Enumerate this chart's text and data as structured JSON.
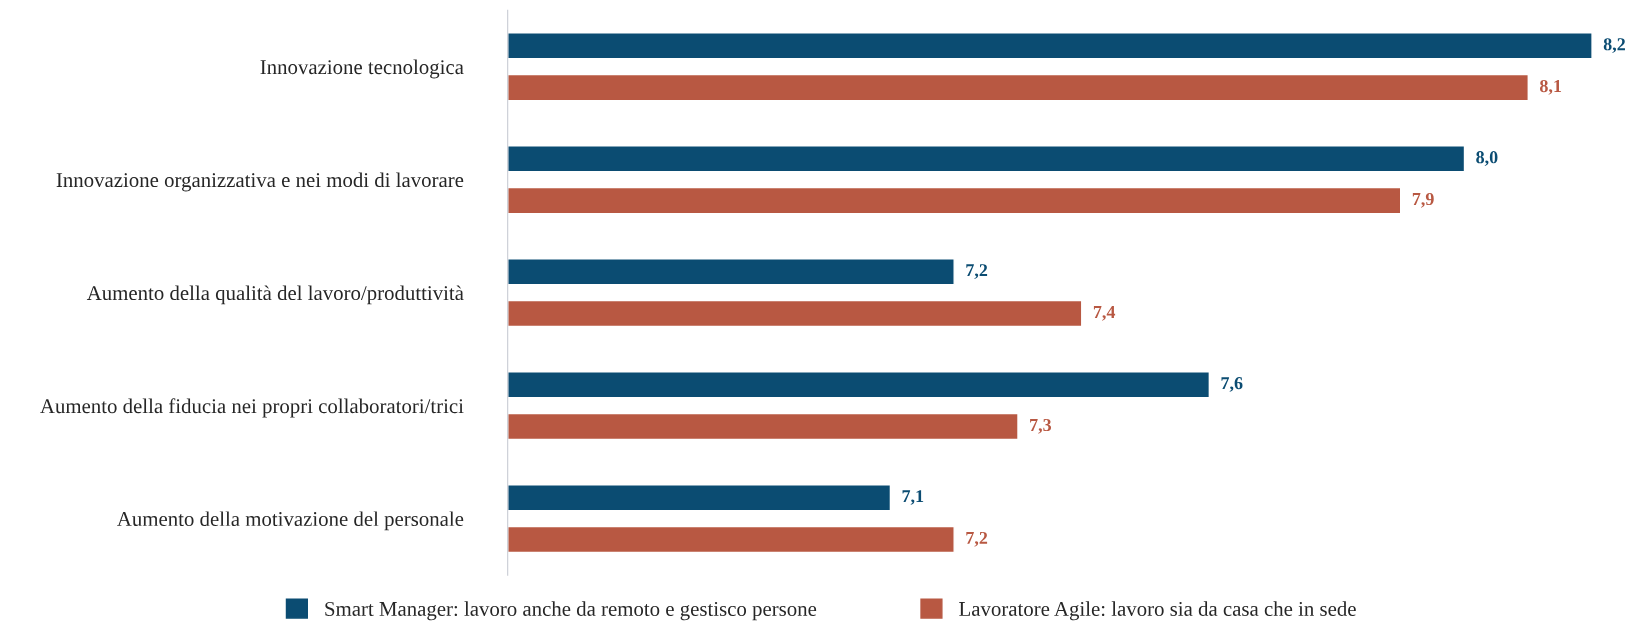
{
  "chart_data": {
    "type": "bar",
    "orientation": "horizontal",
    "categories": [
      "Innovazione tecnologica",
      "Innovazione organizzativa e nei modi di lavorare",
      "Aumento della qualità del lavoro/produttività",
      "Aumento della fiducia nei propri collaboratori/trici",
      "Aumento della motivazione del personale"
    ],
    "series": [
      {
        "name": "Smart Manager: lavoro anche da remoto e gestisco persone",
        "color": "#0b4c72",
        "values": [
          8.2,
          8.0,
          7.2,
          7.6,
          7.1
        ],
        "value_labels": [
          "8,2",
          "8,0",
          "7,2",
          "7,6",
          "7,1"
        ]
      },
      {
        "name": "Lavoratore Agile: lavoro sia da casa che in sede",
        "color": "#b85842",
        "values": [
          8.1,
          7.9,
          7.4,
          7.3,
          7.2
        ],
        "value_labels": [
          "8,1",
          "7,9",
          "7,4",
          "7,3",
          "7,2"
        ]
      }
    ],
    "xlim": [
      6.5,
      8.2
    ],
    "tick_labels": "y",
    "grid": false,
    "legend": "bottom"
  }
}
